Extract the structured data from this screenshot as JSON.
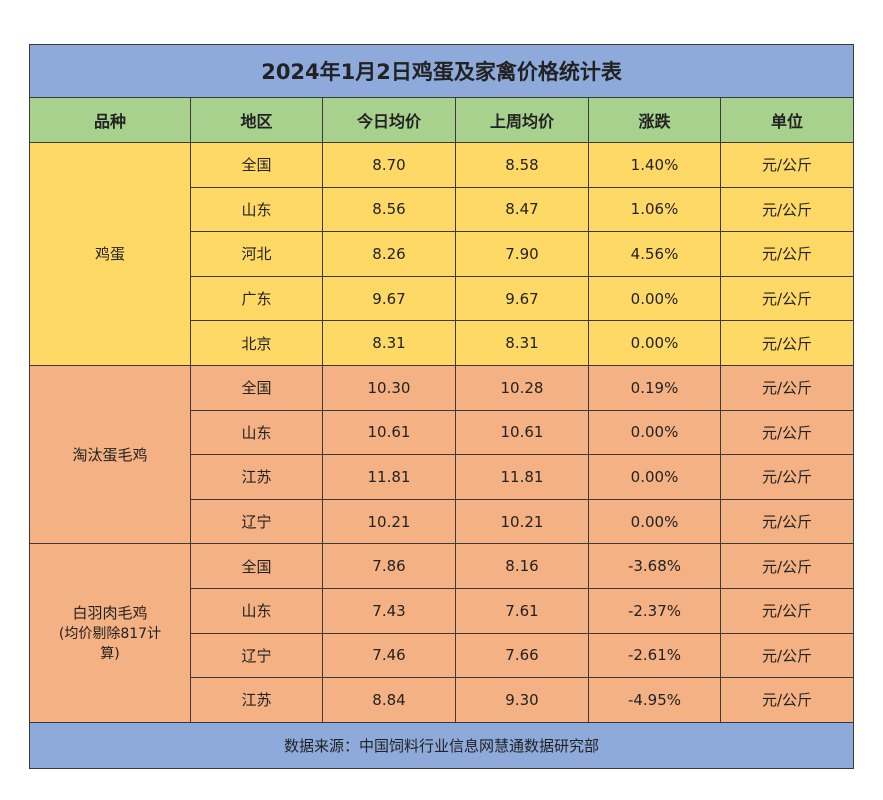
{
  "title": "2024年1月2日鸡蛋及家禽价格统计表",
  "headers": [
    "品种",
    "地区",
    "今日均价",
    "上周均价",
    "涨跌",
    "单位"
  ],
  "groups": [
    {
      "key": "egg",
      "name": "鸡蛋",
      "note": "",
      "color": "#ffd966",
      "rows": [
        {
          "region": "全国",
          "today": "8.70",
          "last_week": "8.58",
          "change": "1.40%",
          "unit": "元/公斤"
        },
        {
          "region": "山东",
          "today": "8.56",
          "last_week": "8.47",
          "change": "1.06%",
          "unit": "元/公斤"
        },
        {
          "region": "河北",
          "today": "8.26",
          "last_week": "7.90",
          "change": "4.56%",
          "unit": "元/公斤"
        },
        {
          "region": "广东",
          "today": "9.67",
          "last_week": "9.67",
          "change": "0.00%",
          "unit": "元/公斤"
        },
        {
          "region": "北京",
          "today": "8.31",
          "last_week": "8.31",
          "change": "0.00%",
          "unit": "元/公斤"
        }
      ]
    },
    {
      "key": "hen",
      "name": "淘汰蛋毛鸡",
      "note": "",
      "color": "#f4b183",
      "rows": [
        {
          "region": "全国",
          "today": "10.30",
          "last_week": "10.28",
          "change": "0.19%",
          "unit": "元/公斤"
        },
        {
          "region": "山东",
          "today": "10.61",
          "last_week": "10.61",
          "change": "0.00%",
          "unit": "元/公斤"
        },
        {
          "region": "江苏",
          "today": "11.81",
          "last_week": "11.81",
          "change": "0.00%",
          "unit": "元/公斤"
        },
        {
          "region": "辽宁",
          "today": "10.21",
          "last_week": "10.21",
          "change": "0.00%",
          "unit": "元/公斤"
        }
      ]
    },
    {
      "key": "broiler",
      "name": "白羽肉毛鸡",
      "note": "(均价剔除817计算)",
      "color": "#f4b183",
      "rows": [
        {
          "region": "全国",
          "today": "7.86",
          "last_week": "8.16",
          "change": "-3.68%",
          "unit": "元/公斤"
        },
        {
          "region": "山东",
          "today": "7.43",
          "last_week": "7.61",
          "change": "-2.37%",
          "unit": "元/公斤"
        },
        {
          "region": "辽宁",
          "today": "7.46",
          "last_week": "7.66",
          "change": "-2.61%",
          "unit": "元/公斤"
        },
        {
          "region": "江苏",
          "today": "8.84",
          "last_week": "9.30",
          "change": "-4.95%",
          "unit": "元/公斤"
        }
      ]
    }
  ],
  "footer": "数据来源：中国饲料行业信息网慧通数据研究部",
  "colors": {
    "title_bg": "#8eaadb",
    "header_bg": "#a9d18e",
    "egg_bg": "#ffd966",
    "poultry_bg": "#f4b183"
  }
}
